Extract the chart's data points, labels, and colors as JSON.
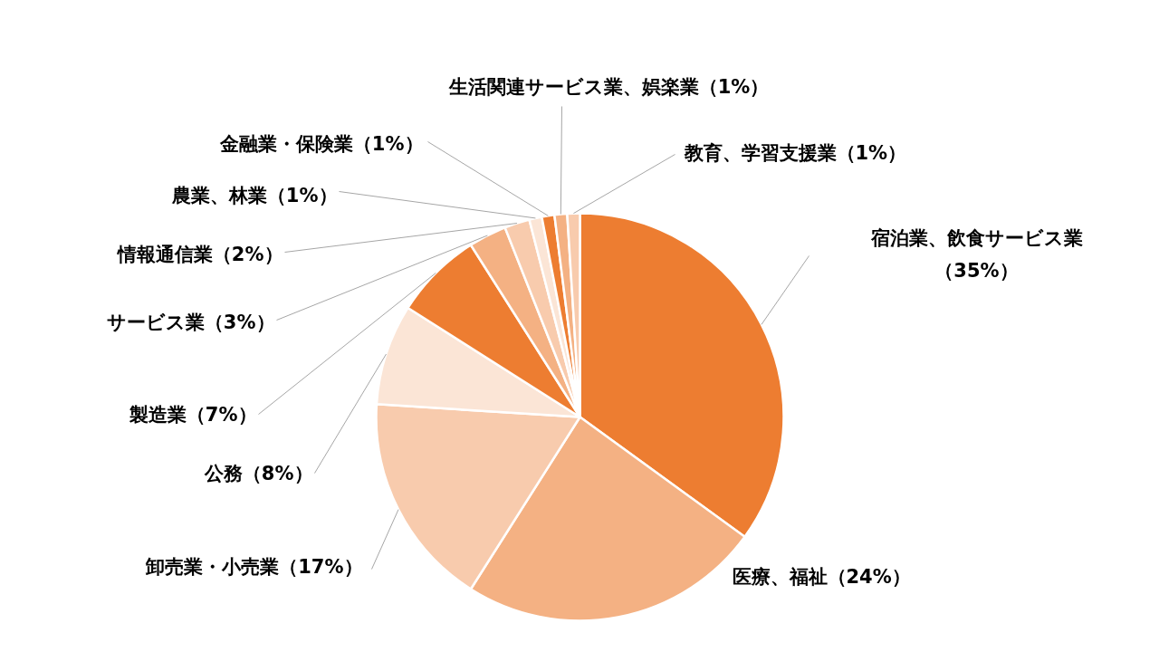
{
  "chart_data": {
    "type": "pie",
    "categories": [
      "宿泊業、飲食サービス業",
      "医療、福祉",
      "卸売業・小売業",
      "公務",
      "製造業",
      "サービス業",
      "情報通信業",
      "農業、林業",
      "金融業・保険業",
      "生活関連サービス業、娯楽業",
      "教育、学習支援業"
    ],
    "values": [
      35,
      24,
      17,
      8,
      7,
      3,
      2,
      1,
      1,
      1,
      1
    ],
    "colors": [
      "#ed7d31",
      "#f4b183",
      "#f8cbad",
      "#fbe5d6",
      "#ed7d31",
      "#f4b183",
      "#f8cbad",
      "#fbe5d6",
      "#ed7d31",
      "#f4b183",
      "#f8cbad"
    ],
    "value_labels": [
      "（35%）",
      "（24%）",
      "（17%）",
      "（8%）",
      "（7%）",
      "（3%）",
      "（2%）",
      "（1%）",
      "（1%）",
      "（1%）",
      "（1%）"
    ]
  }
}
